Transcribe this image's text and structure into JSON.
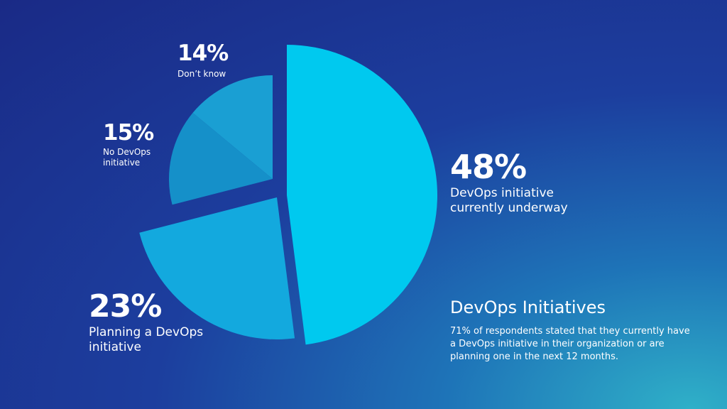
{
  "chart_data": {
    "type": "pie",
    "title": "DevOps Initiatives",
    "subtitle": "71% of respondents stated that they currently have a DevOps initiative in their organization or are planning one in the next 12 months.",
    "categories": [
      "DevOps initiative currently underway",
      "Planning a DevOps initiative",
      "No DevOps initiative",
      "Don’t know"
    ],
    "values": [
      48,
      23,
      15,
      14
    ],
    "value_labels": [
      "48%",
      "23%",
      "15%",
      "14%"
    ],
    "colors": [
      "#00c9ef",
      "#13a9de",
      "#1590c9",
      "#1a9fd3"
    ]
  }
}
